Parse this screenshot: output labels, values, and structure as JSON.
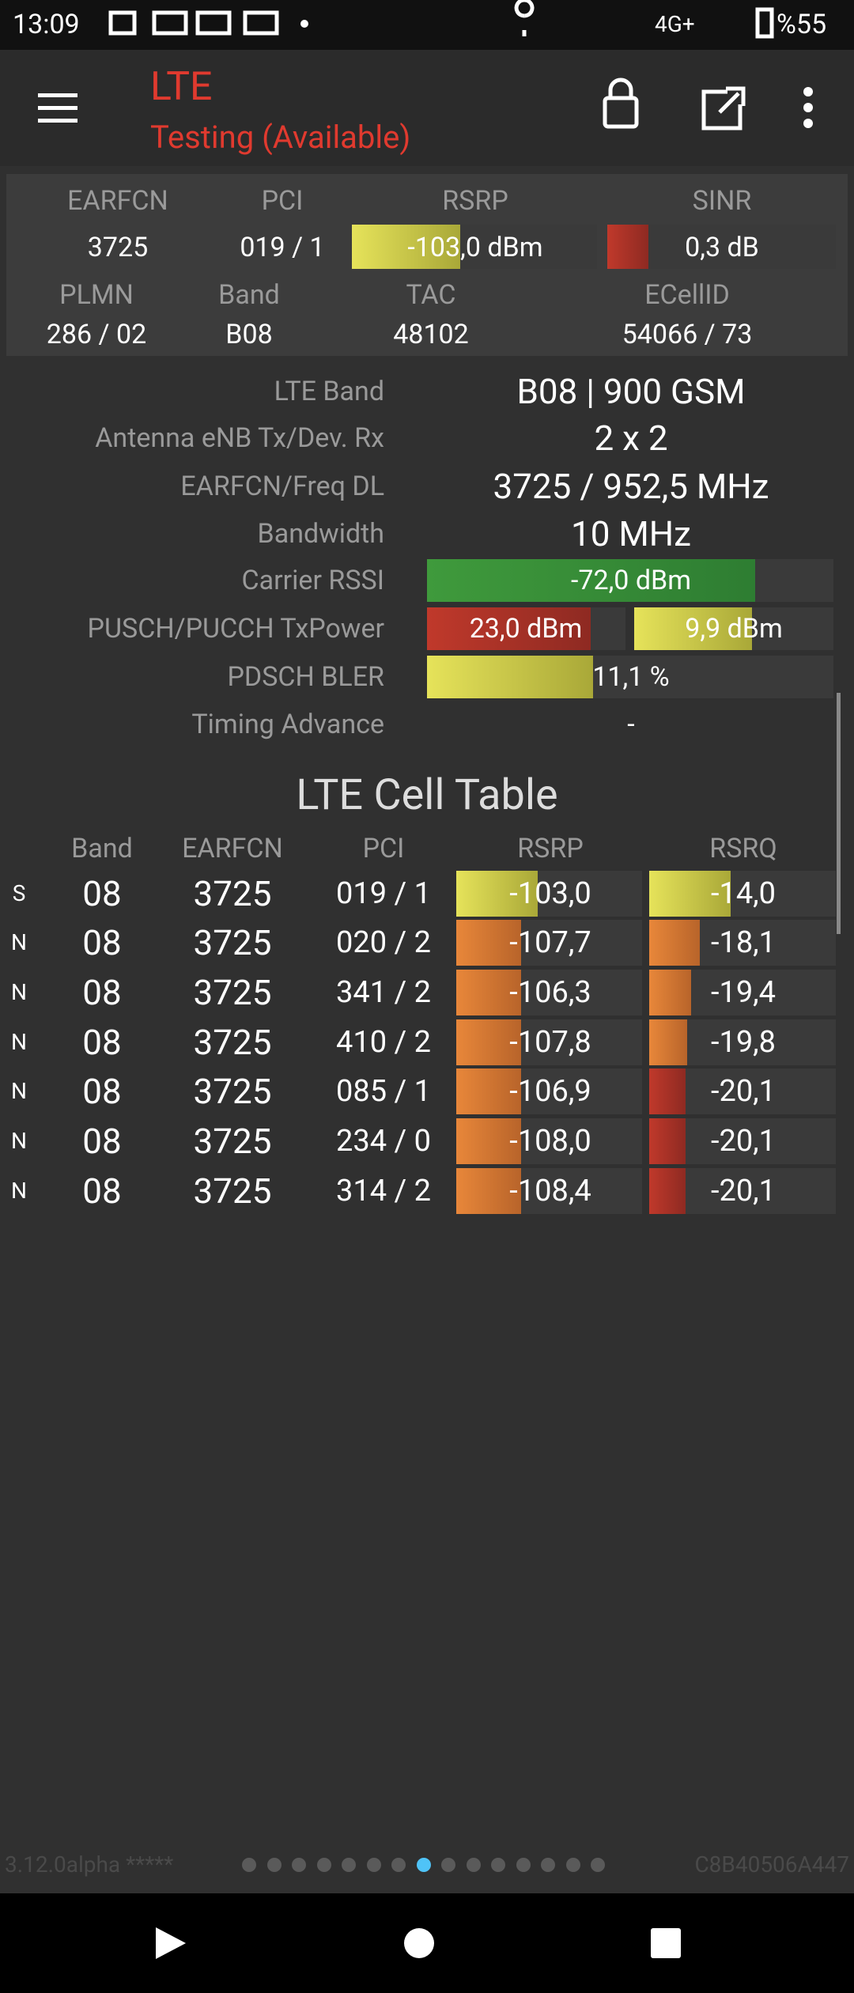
{
  "status_bar": {
    "time": "13:09",
    "network": "4G+",
    "battery": "%55"
  },
  "toolbar": {
    "title": "LTE",
    "subtitle": "Testing (Available)"
  },
  "summary": {
    "headers": [
      "EARFCN",
      "PCI",
      "RSRP",
      "SINR"
    ],
    "values": [
      "3725",
      "019 / 1",
      "-103,0 dBm",
      "0,3 dB"
    ],
    "headers2": [
      "PLMN",
      "Band",
      "TAC",
      "ECellID"
    ],
    "values2": [
      "286 / 02",
      "B08",
      "48102",
      "54066 / 73"
    ]
  },
  "info": [
    {
      "label": "LTE Band",
      "value": "B08 | 900 GSM"
    },
    {
      "label": "Antenna eNB Tx/Dev. Rx",
      "value": "2 x 2"
    },
    {
      "label": "EARFCN/Freq DL",
      "value": "3725 / 952,5 MHz"
    },
    {
      "label": "Bandwidth",
      "value": "10 MHz"
    },
    {
      "label": "Carrier RSSI",
      "value": "-72,0 dBm"
    },
    {
      "label": "PUSCH/PUCCH TxPower",
      "value": "23,0 dBm",
      "value2": "9,9 dBm"
    },
    {
      "label": "PDSCH BLER",
      "value": "11,1 %"
    },
    {
      "label": "Timing Advance",
      "value": "-"
    }
  ],
  "cell_table": {
    "title": "LTE Cell Table",
    "headers": [
      "Band",
      "EARFCN",
      "PCI",
      "RSRP",
      "RSRQ"
    ],
    "rows": [
      [
        "S",
        "08",
        "3725",
        "019 / 1",
        "-103,0",
        "-14,0"
      ],
      [
        "N",
        "08",
        "3725",
        "020 / 2",
        "-107,7",
        "-18,1"
      ],
      [
        "N",
        "08",
        "3725",
        "341 / 2",
        "-106,3",
        "-19,4"
      ],
      [
        "N",
        "08",
        "3725",
        "410 / 2",
        "-107,8",
        "-19,8"
      ],
      [
        "N",
        "08",
        "3725",
        "085 / 1",
        "-106,9",
        "-20,1"
      ],
      [
        "N",
        "08",
        "3725",
        "234 / 0",
        "-108,0",
        "-20,1"
      ],
      [
        "N",
        "08",
        "3725",
        "314 / 2",
        "-108,4",
        "-20,1"
      ]
    ]
  },
  "footer": {
    "version": "3.12.0alpha *****",
    "device_id": "C8B40506A447"
  }
}
